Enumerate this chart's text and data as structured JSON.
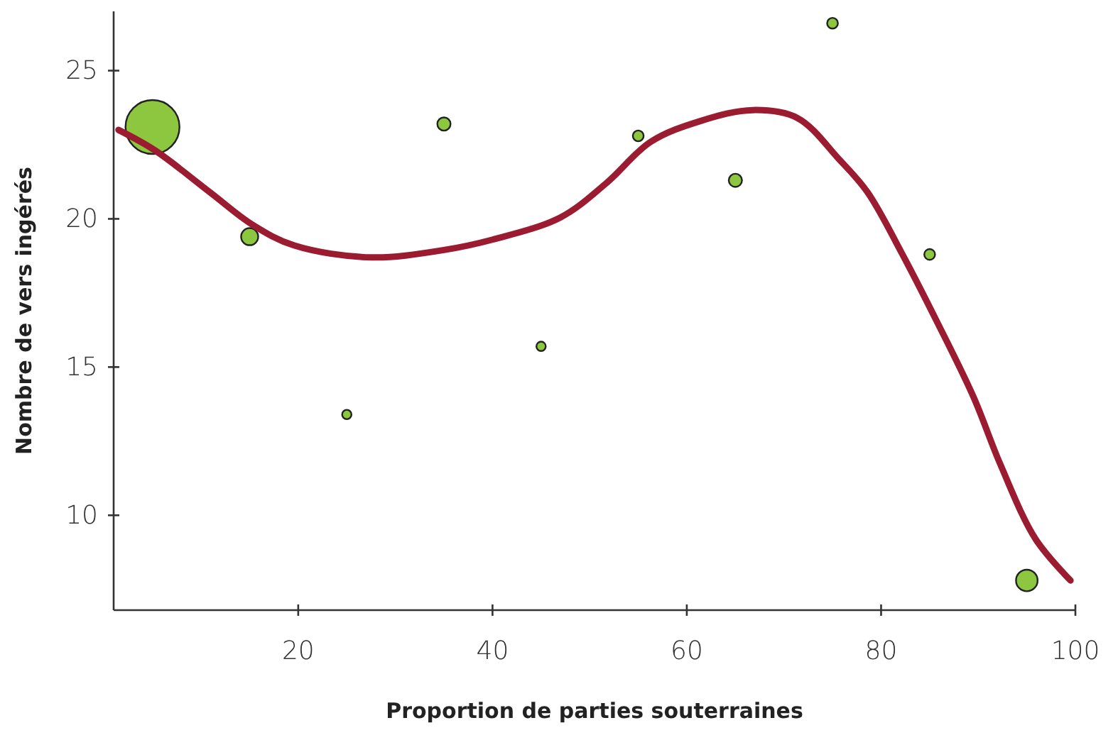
{
  "chart_data": {
    "type": "bubble",
    "xlabel": "Proportion de parties souterraines",
    "ylabel": "Nombre de vers ingérés",
    "x": [
      5,
      15,
      25,
      35,
      45,
      55,
      65,
      75,
      85,
      95
    ],
    "xlim": [
      1,
      100
    ],
    "xticks": [
      20,
      40,
      60,
      80,
      100
    ],
    "ylim": [
      6.8,
      27
    ],
    "yticks": [
      10,
      15,
      20,
      25
    ],
    "grid": false,
    "series": [
      {
        "color": "#8dc63f",
        "values": [
          23.1,
          19.4,
          13.4,
          23.2,
          15.7,
          22.8,
          21.3,
          26.6,
          18.8,
          7.8
        ],
        "sizes": [
          1,
          0.1,
          0.03,
          0.06,
          0.03,
          0.04,
          0.06,
          0.04,
          0.04,
          0.16
        ]
      },
      {
        "type": "line",
        "color": "#9b1b30",
        "line_style": "solid",
        "marker": "none",
        "x": [
          1.5,
          5.3,
          10.9,
          15.3,
          19.6,
          27.5,
          35,
          40,
          47,
          51.7,
          56.3,
          61.4,
          66.8,
          71.4,
          75.7,
          78.6,
          82.2,
          85.8,
          89.5,
          92.3,
          95.9,
          99.5
        ],
        "values": [
          23.0,
          22.3,
          20.9,
          19.8,
          19.1,
          18.7,
          18.95,
          19.3,
          20.05,
          21.2,
          22.6,
          23.3,
          23.67,
          23.4,
          22.0,
          20.9,
          18.8,
          16.5,
          14.0,
          11.7,
          9.2,
          7.8
        ]
      }
    ]
  }
}
